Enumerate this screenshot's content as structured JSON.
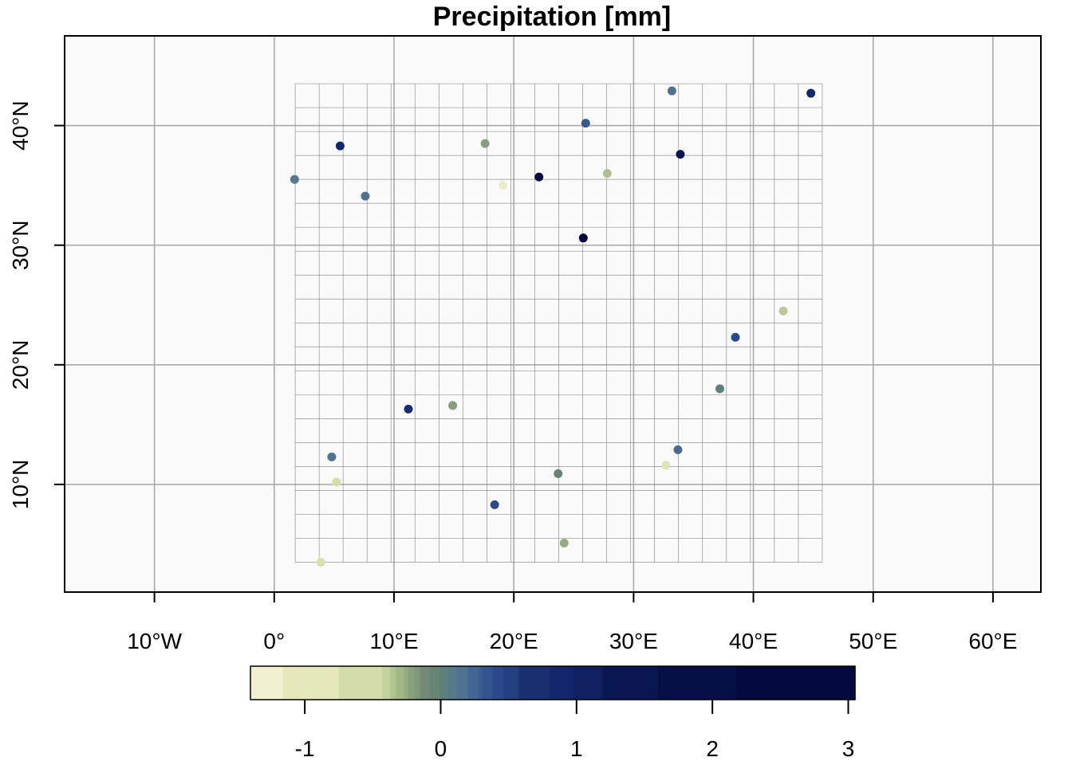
{
  "title": "Precipitation [mm]",
  "chart_data": {
    "type": "map-scatter",
    "title": "Precipitation [mm]",
    "x_ticks": [
      {
        "value": -10,
        "label": "10°W"
      },
      {
        "value": 0,
        "label": "0°"
      },
      {
        "value": 10,
        "label": "10°E"
      },
      {
        "value": 20,
        "label": "20°E"
      },
      {
        "value": 30,
        "label": "30°E"
      },
      {
        "value": 40,
        "label": "40°E"
      },
      {
        "value": 50,
        "label": "50°E"
      },
      {
        "value": 60,
        "label": "60°E"
      }
    ],
    "y_ticks": [
      {
        "value": 10,
        "label": "10°N"
      },
      {
        "value": 20,
        "label": "20°N"
      },
      {
        "value": 30,
        "label": "30°N"
      },
      {
        "value": 40,
        "label": "40°N"
      }
    ],
    "xlim": [
      -17.5,
      64.0
    ],
    "ylim": [
      1.0,
      47.5
    ],
    "grid": true,
    "raster_extent": {
      "lon": [
        1.75,
        45.75
      ],
      "lat": [
        3.5,
        43.5
      ],
      "cell": 2.0
    },
    "points": [
      {
        "lon": 33.2,
        "lat": 42.9,
        "value": 0.3
      },
      {
        "lon": 44.8,
        "lat": 42.7,
        "value": 1.3
      },
      {
        "lon": 26.0,
        "lat": 40.2,
        "value": 0.6
      },
      {
        "lon": 5.5,
        "lat": 38.3,
        "value": 1.3
      },
      {
        "lon": 17.6,
        "lat": 38.5,
        "value": -0.2
      },
      {
        "lon": 33.9,
        "lat": 37.6,
        "value": 1.8
      },
      {
        "lon": 1.7,
        "lat": 35.5,
        "value": 0.2
      },
      {
        "lon": 22.1,
        "lat": 35.7,
        "value": 2.4
      },
      {
        "lon": 27.8,
        "lat": 36.0,
        "value": -0.5
      },
      {
        "lon": 19.1,
        "lat": 35.0,
        "value": -1.3
      },
      {
        "lon": 7.6,
        "lat": 34.1,
        "value": 0.3
      },
      {
        "lon": 25.8,
        "lat": 30.6,
        "value": 2.8
      },
      {
        "lon": 42.5,
        "lat": 24.5,
        "value": -0.6
      },
      {
        "lon": 38.5,
        "lat": 22.3,
        "value": 0.8
      },
      {
        "lon": 37.2,
        "lat": 18.0,
        "value": 0.1
      },
      {
        "lon": 11.2,
        "lat": 16.3,
        "value": 1.2
      },
      {
        "lon": 14.9,
        "lat": 16.6,
        "value": -0.2
      },
      {
        "lon": 33.7,
        "lat": 12.9,
        "value": 0.4
      },
      {
        "lon": 4.8,
        "lat": 12.3,
        "value": 0.3
      },
      {
        "lon": 5.2,
        "lat": 10.2,
        "value": -0.8
      },
      {
        "lon": 32.7,
        "lat": 11.6,
        "value": -1.0
      },
      {
        "lon": 23.7,
        "lat": 10.9,
        "value": 0.0
      },
      {
        "lon": 18.4,
        "lat": 8.3,
        "value": 0.8
      },
      {
        "lon": 24.2,
        "lat": 5.1,
        "value": -0.3
      },
      {
        "lon": 3.9,
        "lat": 3.5,
        "value": -0.9
      }
    ],
    "colorbar": {
      "range": [
        -1.4,
        3.05
      ],
      "ticks": [
        {
          "value": -1,
          "label": "-1"
        },
        {
          "value": 0,
          "label": "0"
        },
        {
          "value": 1,
          "label": "1"
        },
        {
          "value": 2,
          "label": "2"
        },
        {
          "value": 3,
          "label": "3"
        }
      ],
      "breaks": [
        -1.4,
        -1.16,
        -0.75,
        -0.43,
        -0.37,
        -0.33,
        -0.27,
        -0.24,
        -0.19,
        -0.15,
        -0.08,
        -0.01,
        0.05,
        0.12,
        0.2,
        0.28,
        0.31,
        0.38,
        0.46,
        0.57,
        0.58,
        0.8,
        0.98,
        1.19,
        1.6,
        2.17,
        3.05
      ],
      "colors": [
        "#f1f1d0",
        "#e5e9b9",
        "#d4ddaa",
        "#c3d29d",
        "#b1c38f",
        "#a3b887",
        "#96ab80",
        "#88a07b",
        "#7e9778",
        "#728a77",
        "#698474",
        "#5f7f7a",
        "#577a88",
        "#4f7291",
        "#436795",
        "#3a5c93",
        "#34548f",
        "#2c4a89",
        "#254182",
        "#1f3779",
        "#1a2f70",
        "#15276b",
        "#10205e",
        "#0a1651",
        "#070f47",
        "#040a3e"
      ]
    },
    "point_colorscale": [
      {
        "value": -1.4,
        "color": "#f1f1d0"
      },
      {
        "value": -0.8,
        "color": "#d4ddaa"
      },
      {
        "value": -0.3,
        "color": "#96ab80"
      },
      {
        "value": 0.0,
        "color": "#698474"
      },
      {
        "value": 0.3,
        "color": "#4f7291"
      },
      {
        "value": 0.8,
        "color": "#2c4a89"
      },
      {
        "value": 1.3,
        "color": "#15276b"
      },
      {
        "value": 2.0,
        "color": "#070f47"
      },
      {
        "value": 3.05,
        "color": "#00003a"
      }
    ]
  },
  "colors": {
    "plot_bg": "#fafafa",
    "graticule": "#aaaaaa",
    "raster_grid": "#808080",
    "frame": "#000000"
  }
}
